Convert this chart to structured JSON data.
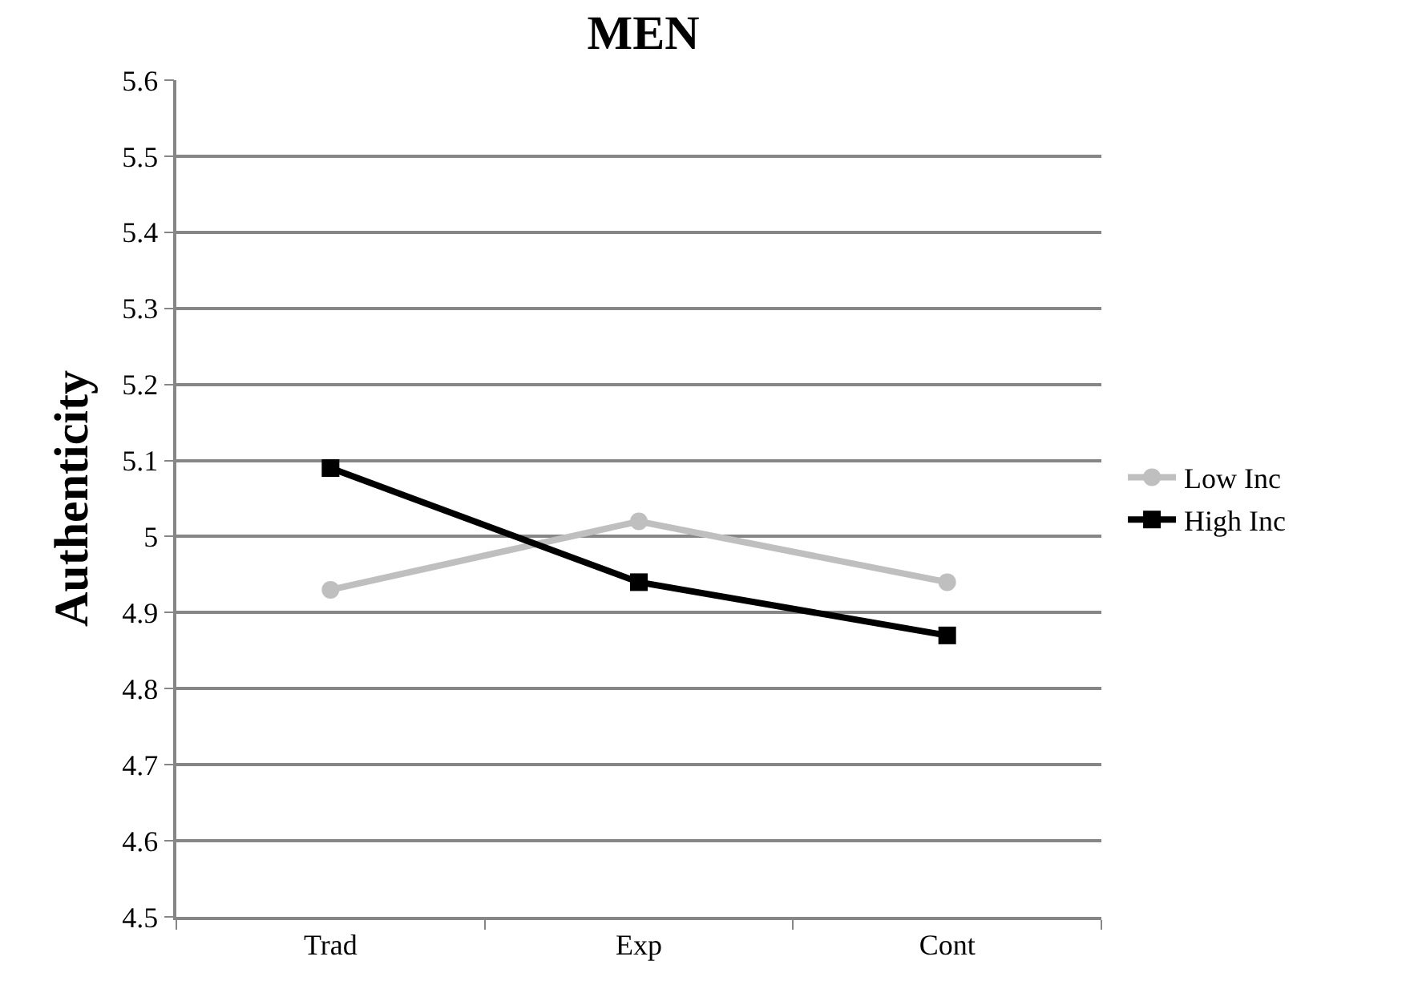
{
  "chart_data": {
    "type": "line",
    "title": "MEN",
    "ylabel": "Authenticity",
    "categories": [
      "Trad",
      "Exp",
      "Cont"
    ],
    "series": [
      {
        "name": "Low Inc",
        "color": "#bfbfbf",
        "marker": "circle",
        "values": [
          4.93,
          5.02,
          4.94
        ]
      },
      {
        "name": "High Inc",
        "color": "#000000",
        "marker": "square",
        "values": [
          5.09,
          4.94,
          4.87
        ]
      }
    ],
    "ylim": [
      4.5,
      5.6
    ],
    "yticks": [
      4.5,
      4.6,
      4.7,
      4.8,
      4.9,
      {
        "value": 5,
        "label": "5"
      },
      5.1,
      5.2,
      5.3,
      5.4,
      5.5,
      5.6
    ],
    "grid": "y",
    "legend": "right"
  }
}
